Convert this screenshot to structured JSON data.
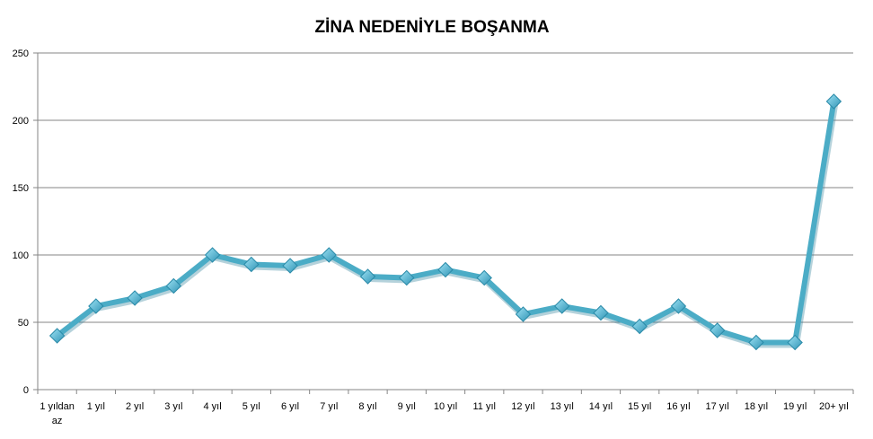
{
  "chart_data": {
    "type": "line",
    "title": "ZİNA NEDENİYLE BOŞANMA",
    "xlabel": "",
    "ylabel": "",
    "categories": [
      "1 yıldan az",
      "1 yıl",
      "2 yıl",
      "3 yıl",
      "4 yıl",
      "5 yıl",
      "6 yıl",
      "7 yıl",
      "8 yıl",
      "9 yıl",
      "10 yıl",
      "11 yıl",
      "12 yıl",
      "13 yıl",
      "14 yıl",
      "15 yıl",
      "16 yıl",
      "17 yıl",
      "18 yıl",
      "19 yıl",
      "20+ yıl"
    ],
    "series": [
      {
        "values": [
          40,
          62,
          68,
          77,
          100,
          93,
          92,
          100,
          84,
          83,
          89,
          83,
          56,
          62,
          57,
          47,
          62,
          44,
          35,
          35,
          214
        ]
      }
    ],
    "ylim": [
      0,
      250
    ],
    "yticks": [
      0,
      50,
      100,
      150,
      200,
      250
    ],
    "grid": true,
    "legend": "none",
    "colors": {
      "line": "#4bacc6",
      "marker_light": "#9ee3f5",
      "marker_dark": "#2f93b4",
      "grid": "#868686",
      "axis": "#868686"
    }
  }
}
